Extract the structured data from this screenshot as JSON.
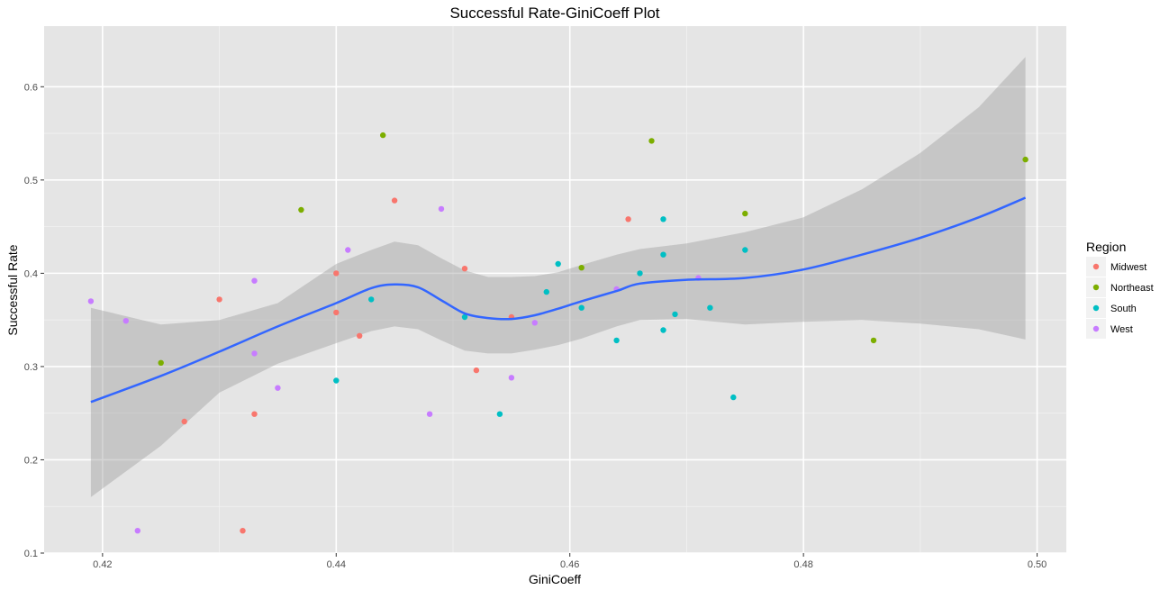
{
  "chart_data": {
    "type": "scatter",
    "title": "Successful Rate-GiniCoeff Plot",
    "xlabel": "GiniCoeff",
    "ylabel": "Successful Rate",
    "xlim": [
      0.415,
      0.5025
    ],
    "ylim": [
      0.1,
      0.665
    ],
    "x_ticks": [
      0.42,
      0.44,
      0.46,
      0.48,
      0.5
    ],
    "x_tick_labels": [
      "0.42",
      "0.44",
      "0.46",
      "0.48",
      "0.50"
    ],
    "y_ticks": [
      0.1,
      0.2,
      0.3,
      0.4,
      0.5,
      0.6
    ],
    "y_tick_labels": [
      "0.1",
      "0.2",
      "0.3",
      "0.4",
      "0.5",
      "0.6"
    ],
    "grid": true,
    "legend": {
      "title": "Region",
      "placement": "right"
    },
    "series": [
      {
        "name": "Midwest",
        "color": "#F8766D",
        "points": [
          [
            0.427,
            0.241
          ],
          [
            0.43,
            0.372
          ],
          [
            0.432,
            0.124
          ],
          [
            0.433,
            0.249
          ],
          [
            0.44,
            0.4
          ],
          [
            0.44,
            0.358
          ],
          [
            0.442,
            0.333
          ],
          [
            0.445,
            0.478
          ],
          [
            0.451,
            0.405
          ],
          [
            0.452,
            0.296
          ],
          [
            0.455,
            0.353
          ],
          [
            0.465,
            0.458
          ]
        ]
      },
      {
        "name": "Northeast",
        "color": "#7CAE00",
        "points": [
          [
            0.425,
            0.304
          ],
          [
            0.437,
            0.468
          ],
          [
            0.444,
            0.548
          ],
          [
            0.461,
            0.406
          ],
          [
            0.467,
            0.542
          ],
          [
            0.475,
            0.464
          ],
          [
            0.486,
            0.328
          ],
          [
            0.499,
            0.522
          ]
        ]
      },
      {
        "name": "South",
        "color": "#00BFC4",
        "points": [
          [
            0.44,
            0.285
          ],
          [
            0.443,
            0.372
          ],
          [
            0.451,
            0.353
          ],
          [
            0.454,
            0.249
          ],
          [
            0.458,
            0.38
          ],
          [
            0.459,
            0.41
          ],
          [
            0.461,
            0.363
          ],
          [
            0.464,
            0.328
          ],
          [
            0.466,
            0.4
          ],
          [
            0.468,
            0.458
          ],
          [
            0.468,
            0.42
          ],
          [
            0.468,
            0.339
          ],
          [
            0.469,
            0.356
          ],
          [
            0.472,
            0.363
          ],
          [
            0.474,
            0.267
          ],
          [
            0.475,
            0.425
          ]
        ]
      },
      {
        "name": "West",
        "color": "#C77CFF",
        "points": [
          [
            0.419,
            0.37
          ],
          [
            0.422,
            0.349
          ],
          [
            0.423,
            0.124
          ],
          [
            0.433,
            0.392
          ],
          [
            0.433,
            0.314
          ],
          [
            0.435,
            0.277
          ],
          [
            0.441,
            0.425
          ],
          [
            0.448,
            0.249
          ],
          [
            0.449,
            0.469
          ],
          [
            0.455,
            0.288
          ],
          [
            0.457,
            0.347
          ],
          [
            0.464,
            0.383
          ],
          [
            0.471,
            0.395
          ]
        ]
      }
    ],
    "smooth": {
      "color": "#3366FF",
      "band_color": "#999999",
      "x": [
        0.419,
        0.425,
        0.43,
        0.435,
        0.44,
        0.443,
        0.445,
        0.447,
        0.449,
        0.451,
        0.453,
        0.455,
        0.457,
        0.459,
        0.461,
        0.464,
        0.466,
        0.47,
        0.475,
        0.48,
        0.485,
        0.49,
        0.495,
        0.499
      ],
      "y": [
        0.262,
        0.29,
        0.316,
        0.343,
        0.368,
        0.384,
        0.388,
        0.385,
        0.371,
        0.357,
        0.352,
        0.351,
        0.355,
        0.362,
        0.37,
        0.381,
        0.389,
        0.393,
        0.395,
        0.404,
        0.42,
        0.438,
        0.46,
        0.481
      ],
      "lower": [
        0.16,
        0.215,
        0.272,
        0.303,
        0.325,
        0.338,
        0.343,
        0.34,
        0.328,
        0.317,
        0.314,
        0.314,
        0.318,
        0.323,
        0.33,
        0.343,
        0.35,
        0.351,
        0.345,
        0.348,
        0.35,
        0.346,
        0.34,
        0.329
      ],
      "upper": [
        0.363,
        0.345,
        0.35,
        0.368,
        0.41,
        0.425,
        0.434,
        0.43,
        0.416,
        0.403,
        0.396,
        0.396,
        0.397,
        0.401,
        0.409,
        0.42,
        0.426,
        0.432,
        0.444,
        0.46,
        0.49,
        0.529,
        0.578,
        0.632
      ]
    }
  }
}
